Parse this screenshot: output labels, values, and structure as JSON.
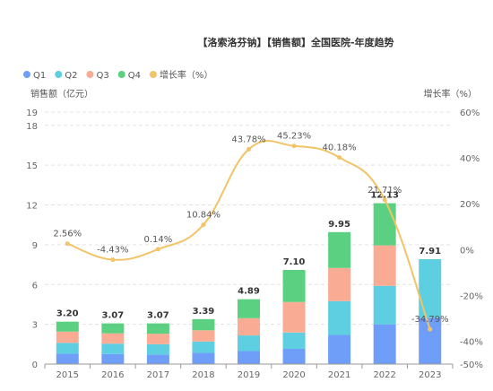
{
  "chart_data": {
    "type": "bar",
    "title": "【洛索洛芬钠】【销售额】全国医院-年度趋势",
    "ylabel_left": "销售额（亿元）",
    "ylabel_right": "增长率（%）",
    "categories": [
      "2015",
      "2016",
      "2017",
      "2018",
      "2019",
      "2020",
      "2021",
      "2022",
      "2023"
    ],
    "series": [
      {
        "name": "Q1",
        "type": "bar",
        "stack": "total",
        "color": "#6f9ef8",
        "values": [
          0.78,
          0.76,
          0.72,
          0.85,
          0.98,
          1.15,
          2.2,
          3.0,
          3.5
        ]
      },
      {
        "name": "Q2",
        "type": "bar",
        "stack": "total",
        "color": "#5dcfe0",
        "values": [
          0.82,
          0.78,
          0.78,
          0.85,
          1.18,
          1.23,
          2.55,
          2.9,
          4.41
        ]
      },
      {
        "name": "Q3",
        "type": "bar",
        "stack": "total",
        "color": "#f9ab94",
        "values": [
          0.85,
          0.78,
          0.79,
          0.85,
          1.3,
          2.3,
          2.5,
          3.05,
          0
        ]
      },
      {
        "name": "Q4",
        "type": "bar",
        "stack": "total",
        "color": "#5cd081",
        "values": [
          0.75,
          0.75,
          0.78,
          0.84,
          1.43,
          2.42,
          2.7,
          3.18,
          0
        ]
      },
      {
        "name": "增长率（%）",
        "type": "line",
        "axis": "right",
        "color": "#f2c467",
        "values": [
          2.56,
          -4.43,
          0.14,
          10.84,
          43.78,
          45.23,
          40.18,
          21.71,
          -34.79
        ]
      }
    ],
    "totals": [
      3.2,
      3.07,
      3.07,
      3.39,
      4.89,
      7.1,
      9.95,
      12.13,
      7.91
    ],
    "total_labels": [
      "3.20",
      "3.07",
      "3.07",
      "3.39",
      "4.89",
      "7.10",
      "9.95",
      "12.13",
      "7.91"
    ],
    "growth_labels": [
      "2.56%",
      "-4.43%",
      "0.14%",
      "10.84%",
      "43.78%",
      "45.23%",
      "40.18%",
      "21.71%",
      "-34.79%"
    ],
    "y_left": {
      "min": 0,
      "max": 19,
      "ticks": [
        0,
        3,
        6,
        9,
        12,
        15,
        18,
        19
      ]
    },
    "y_right": {
      "min": -50,
      "max": 60,
      "ticks": [
        -50,
        -40,
        -20,
        0,
        20,
        40,
        60
      ],
      "tick_labels": [
        "-50%",
        "-40%",
        "-20%",
        "0%",
        "20%",
        "40%",
        "60%"
      ]
    },
    "legend": {
      "position": "top-left",
      "items": [
        {
          "name": "Q1",
          "color": "#6f9ef8",
          "shape": "circle"
        },
        {
          "name": "Q2",
          "color": "#5dcfe0",
          "shape": "circle"
        },
        {
          "name": "Q3",
          "color": "#f9ab94",
          "shape": "circle"
        },
        {
          "name": "Q4",
          "color": "#5cd081",
          "shape": "circle"
        },
        {
          "name": "增长率（%）",
          "color": "#f2c467",
          "shape": "circle"
        }
      ]
    },
    "grid": true
  }
}
